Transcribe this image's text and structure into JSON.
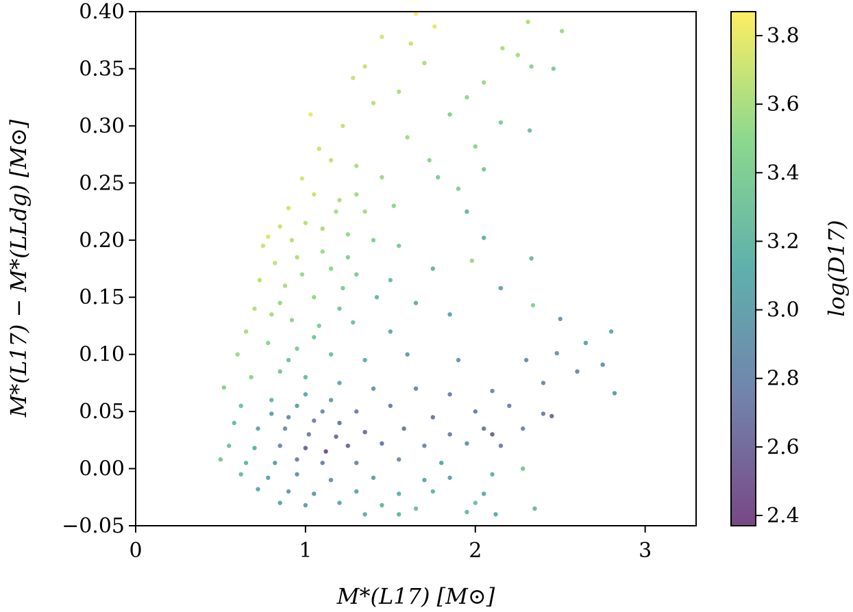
{
  "chart_data": {
    "type": "scatter",
    "title": "",
    "xlabel": "M*(L17) [M⊙]",
    "ylabel": "M*(L17) − M*(LLdg) [M⊙]",
    "xlim": [
      0,
      3.3
    ],
    "ylim": [
      -0.05,
      0.4
    ],
    "xticks": [
      {
        "value": 0,
        "label": "0"
      },
      {
        "value": 1,
        "label": "1"
      },
      {
        "value": 2,
        "label": "2"
      },
      {
        "value": 3,
        "label": "3"
      }
    ],
    "yticks": [
      {
        "value": -0.05,
        "label": "−0.05"
      },
      {
        "value": 0.0,
        "label": "0.00"
      },
      {
        "value": 0.05,
        "label": "0.05"
      },
      {
        "value": 0.1,
        "label": "0.10"
      },
      {
        "value": 0.15,
        "label": "0.15"
      },
      {
        "value": 0.2,
        "label": "0.20"
      },
      {
        "value": 0.25,
        "label": "0.25"
      },
      {
        "value": 0.3,
        "label": "0.30"
      },
      {
        "value": 0.35,
        "label": "0.35"
      },
      {
        "value": 0.4,
        "label": "0.40"
      }
    ],
    "colorbar": {
      "label": "log(D17)",
      "colormap": "viridis",
      "range": [
        2.37,
        3.87
      ],
      "ticks": [
        {
          "value": 2.4,
          "label": "2.4"
        },
        {
          "value": 2.6,
          "label": "2.6"
        },
        {
          "value": 2.8,
          "label": "2.8"
        },
        {
          "value": 3.0,
          "label": "3.0"
        },
        {
          "value": 3.2,
          "label": "3.2"
        },
        {
          "value": 3.4,
          "label": "3.4"
        },
        {
          "value": 3.6,
          "label": "3.6"
        },
        {
          "value": 3.8,
          "label": "3.8"
        }
      ]
    },
    "grid": false,
    "legend": "none",
    "colors": {
      "viridis_stops": [
        "#440154",
        "#3b528b",
        "#21918c",
        "#5ec962",
        "#fde725"
      ]
    },
    "points": [
      [
        1.65,
        0.398,
        3.86
      ],
      [
        1.76,
        0.387,
        3.78
      ],
      [
        2.31,
        0.391,
        3.62
      ],
      [
        2.51,
        0.383,
        3.55
      ],
      [
        1.45,
        0.378,
        3.74
      ],
      [
        1.62,
        0.372,
        3.7
      ],
      [
        2.16,
        0.368,
        3.6
      ],
      [
        2.25,
        0.362,
        3.58
      ],
      [
        1.35,
        0.352,
        3.72
      ],
      [
        2.33,
        0.352,
        3.48
      ],
      [
        2.46,
        0.35,
        3.4
      ],
      [
        1.7,
        0.355,
        3.62
      ],
      [
        1.03,
        0.31,
        3.82
      ],
      [
        1.28,
        0.342,
        3.7
      ],
      [
        1.55,
        0.33,
        3.62
      ],
      [
        2.05,
        0.338,
        3.55
      ],
      [
        1.95,
        0.325,
        3.52
      ],
      [
        2.15,
        0.303,
        3.4
      ],
      [
        1.85,
        0.31,
        3.45
      ],
      [
        2.32,
        0.296,
        3.3
      ],
      [
        1.22,
        0.3,
        3.7
      ],
      [
        1.4,
        0.32,
        3.64
      ],
      [
        1.6,
        0.29,
        3.58
      ],
      [
        1.08,
        0.28,
        3.72
      ],
      [
        1.15,
        0.27,
        3.68
      ],
      [
        1.3,
        0.265,
        3.62
      ],
      [
        1.45,
        0.255,
        3.55
      ],
      [
        1.78,
        0.255,
        3.4
      ],
      [
        2.05,
        0.262,
        3.35
      ],
      [
        1.9,
        0.245,
        3.42
      ],
      [
        2.0,
        0.282,
        3.48
      ],
      [
        1.73,
        0.27,
        3.5
      ],
      [
        0.98,
        0.254,
        3.75
      ],
      [
        1.05,
        0.24,
        3.7
      ],
      [
        1.2,
        0.235,
        3.62
      ],
      [
        1.35,
        0.225,
        3.58
      ],
      [
        1.52,
        0.23,
        3.5
      ],
      [
        1.95,
        0.225,
        3.2
      ],
      [
        0.9,
        0.228,
        3.74
      ],
      [
        0.85,
        0.212,
        3.72
      ],
      [
        0.78,
        0.203,
        3.76
      ],
      [
        1.0,
        0.215,
        3.66
      ],
      [
        1.1,
        0.21,
        3.6
      ],
      [
        1.25,
        0.205,
        3.52
      ],
      [
        1.4,
        0.2,
        3.45
      ],
      [
        1.55,
        0.195,
        3.4
      ],
      [
        2.05,
        0.202,
        3.15
      ],
      [
        0.75,
        0.195,
        3.7
      ],
      [
        0.82,
        0.18,
        3.68
      ],
      [
        0.95,
        0.185,
        3.62
      ],
      [
        1.15,
        0.175,
        3.5
      ],
      [
        1.3,
        0.17,
        3.42
      ],
      [
        1.5,
        0.165,
        3.3
      ],
      [
        1.75,
        0.175,
        3.2
      ],
      [
        1.98,
        0.182,
        3.55
      ],
      [
        2.33,
        0.184,
        3.25
      ],
      [
        0.73,
        0.165,
        3.66
      ],
      [
        0.88,
        0.16,
        3.6
      ],
      [
        1.05,
        0.15,
        3.52
      ],
      [
        1.22,
        0.158,
        3.4
      ],
      [
        1.42,
        0.15,
        3.25
      ],
      [
        1.65,
        0.145,
        3.15
      ],
      [
        2.15,
        0.158,
        3.05
      ],
      [
        2.34,
        0.143,
        3.45
      ],
      [
        0.7,
        0.14,
        3.64
      ],
      [
        0.8,
        0.135,
        3.58
      ],
      [
        0.92,
        0.13,
        3.5
      ],
      [
        1.08,
        0.125,
        3.4
      ],
      [
        1.28,
        0.128,
        3.3
      ],
      [
        1.5,
        0.12,
        3.1
      ],
      [
        1.85,
        0.135,
        3.05
      ],
      [
        2.5,
        0.131,
        3.0
      ],
      [
        0.65,
        0.12,
        3.6
      ],
      [
        0.6,
        0.1,
        3.56
      ],
      [
        0.78,
        0.11,
        3.5
      ],
      [
        0.95,
        0.105,
        3.4
      ],
      [
        1.15,
        0.1,
        3.3
      ],
      [
        1.35,
        0.095,
        3.15
      ],
      [
        1.6,
        0.1,
        3.0
      ],
      [
        1.9,
        0.095,
        2.95
      ],
      [
        2.3,
        0.095,
        2.9
      ],
      [
        2.8,
        0.12,
        3.1
      ],
      [
        2.65,
        0.11,
        3.05
      ],
      [
        2.75,
        0.091,
        2.9
      ],
      [
        2.6,
        0.085,
        2.85
      ],
      [
        2.48,
        0.101,
        2.95
      ],
      [
        0.52,
        0.071,
        3.45
      ],
      [
        0.68,
        0.08,
        3.5
      ],
      [
        0.85,
        0.085,
        3.35
      ],
      [
        1.0,
        0.08,
        3.25
      ],
      [
        1.2,
        0.075,
        3.1
      ],
      [
        1.4,
        0.07,
        2.95
      ],
      [
        1.65,
        0.07,
        2.85
      ],
      [
        1.85,
        0.065,
        2.8
      ],
      [
        2.1,
        0.068,
        2.85
      ],
      [
        2.4,
        0.075,
        2.85
      ],
      [
        2.82,
        0.066,
        2.95
      ],
      [
        0.62,
        0.055,
        3.3
      ],
      [
        0.8,
        0.06,
        3.2
      ],
      [
        0.95,
        0.055,
        3.05
      ],
      [
        1.1,
        0.05,
        2.9
      ],
      [
        1.3,
        0.05,
        2.8
      ],
      [
        1.5,
        0.055,
        2.75
      ],
      [
        1.75,
        0.045,
        2.7
      ],
      [
        2.0,
        0.05,
        2.75
      ],
      [
        2.2,
        0.055,
        2.8
      ],
      [
        2.45,
        0.046,
        2.62
      ],
      [
        2.4,
        0.048,
        2.75
      ],
      [
        0.58,
        0.04,
        3.25
      ],
      [
        0.72,
        0.035,
        3.1
      ],
      [
        0.88,
        0.035,
        2.9
      ],
      [
        1.02,
        0.03,
        2.75
      ],
      [
        1.18,
        0.028,
        2.65
      ],
      [
        1.35,
        0.032,
        2.65
      ],
      [
        1.58,
        0.035,
        2.7
      ],
      [
        1.85,
        0.03,
        2.75
      ],
      [
        2.05,
        0.035,
        2.7
      ],
      [
        2.1,
        0.03,
        2.55
      ],
      [
        2.28,
        0.035,
        2.8
      ],
      [
        0.55,
        0.02,
        3.3
      ],
      [
        0.7,
        0.018,
        3.15
      ],
      [
        0.85,
        0.02,
        2.85
      ],
      [
        1.0,
        0.018,
        2.55
      ],
      [
        1.12,
        0.015,
        2.45
      ],
      [
        1.25,
        0.02,
        2.6
      ],
      [
        1.45,
        0.022,
        2.7
      ],
      [
        1.7,
        0.02,
        2.85
      ],
      [
        1.95,
        0.022,
        2.9
      ],
      [
        2.15,
        0.02,
        2.75
      ],
      [
        0.5,
        0.008,
        3.35
      ],
      [
        0.65,
        0.005,
        3.2
      ],
      [
        0.82,
        0.005,
        3.0
      ],
      [
        0.95,
        0.008,
        2.8
      ],
      [
        1.1,
        0.005,
        2.75
      ],
      [
        1.3,
        0.005,
        2.85
      ],
      [
        1.55,
        0.008,
        2.9
      ],
      [
        1.8,
        0.005,
        3.05
      ],
      [
        2.28,
        0.0,
        3.35
      ],
      [
        0.62,
        -0.005,
        3.25
      ],
      [
        0.78,
        -0.008,
        3.05
      ],
      [
        0.95,
        -0.005,
        2.95
      ],
      [
        1.15,
        -0.01,
        2.9
      ],
      [
        1.4,
        -0.008,
        3.0
      ],
      [
        1.7,
        -0.01,
        3.1
      ],
      [
        1.85,
        -0.008,
        3.05
      ],
      [
        2.1,
        -0.005,
        3.15
      ],
      [
        0.72,
        -0.018,
        3.1
      ],
      [
        0.9,
        -0.02,
        3.0
      ],
      [
        1.05,
        -0.022,
        2.95
      ],
      [
        1.3,
        -0.02,
        3.05
      ],
      [
        1.55,
        -0.022,
        3.15
      ],
      [
        1.75,
        -0.02,
        3.2
      ],
      [
        2.05,
        -0.022,
        3.1
      ],
      [
        0.85,
        -0.03,
        3.05
      ],
      [
        1.0,
        -0.032,
        3.0
      ],
      [
        1.2,
        -0.03,
        3.1
      ],
      [
        1.45,
        -0.032,
        3.2
      ],
      [
        1.65,
        -0.035,
        3.3
      ],
      [
        2.0,
        -0.03,
        3.3
      ],
      [
        1.35,
        -0.04,
        3.15
      ],
      [
        1.55,
        -0.04,
        3.2
      ],
      [
        1.95,
        -0.038,
        3.25
      ],
      [
        2.12,
        -0.04,
        3.1
      ],
      [
        2.35,
        -0.035,
        3.25
      ],
      [
        0.9,
        0.045,
        2.9
      ],
      [
        1.05,
        0.042,
        2.8
      ],
      [
        1.2,
        0.04,
        2.7
      ],
      [
        0.8,
        0.048,
        3.0
      ],
      [
        1.0,
        0.065,
        3.1
      ],
      [
        1.15,
        0.06,
        3.0
      ],
      [
        0.9,
        0.095,
        3.3
      ],
      [
        1.05,
        0.115,
        3.35
      ],
      [
        1.2,
        0.14,
        3.35
      ],
      [
        0.85,
        0.145,
        3.55
      ],
      [
        0.98,
        0.17,
        3.55
      ],
      [
        1.1,
        0.19,
        3.55
      ],
      [
        1.25,
        0.185,
        3.45
      ],
      [
        0.92,
        0.2,
        3.65
      ],
      [
        1.18,
        0.225,
        3.6
      ],
      [
        1.3,
        0.24,
        3.58
      ]
    ]
  }
}
